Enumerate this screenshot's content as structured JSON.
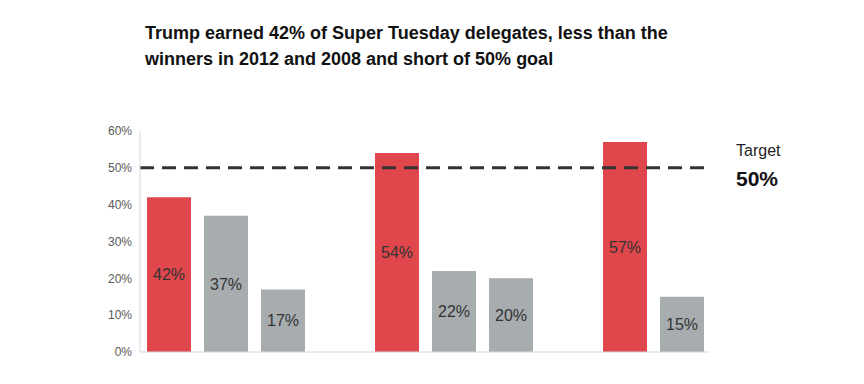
{
  "chart_data": {
    "type": "bar",
    "title": "Trump earned 42% of Super Tuesday delegates, less than the winners in 2012 and 2008 and short of 50% goal",
    "categories": [
      null,
      null,
      null,
      null,
      null,
      null,
      null,
      null
    ],
    "values": [
      42,
      37,
      17,
      54,
      22,
      20,
      57,
      15
    ],
    "value_labels": [
      "42%",
      "37%",
      "17%",
      "54%",
      "22%",
      "20%",
      "57%",
      "15%"
    ],
    "colors": [
      "#e0474c",
      "#a7acaf",
      "#a7acaf",
      "#e0474c",
      "#a7acaf",
      "#a7acaf",
      "#e0474c",
      "#a7acaf"
    ],
    "data_labels": true,
    "ylim": [
      0,
      60
    ],
    "yticks": [
      {
        "value": 0,
        "label": "0%"
      },
      {
        "value": 10,
        "label": "10%"
      },
      {
        "value": 20,
        "label": "20%"
      },
      {
        "value": 30,
        "label": "30%"
      },
      {
        "value": 40,
        "label": "40%"
      },
      {
        "value": 50,
        "label": "50%"
      },
      {
        "value": 60,
        "label": "60%"
      }
    ],
    "grid": false,
    "tick_labels": "y",
    "target": {
      "value": 50,
      "label": "Target",
      "value_label": "50%"
    }
  }
}
